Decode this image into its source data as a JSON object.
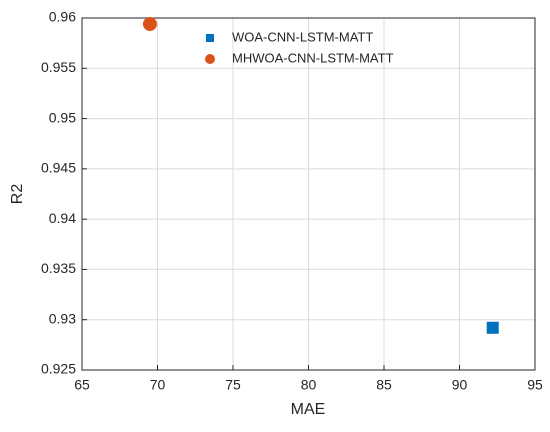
{
  "chart_data": {
    "type": "scatter",
    "xlabel": "MAE",
    "ylabel": "R2",
    "series": [
      {
        "name": "WOA-CNN-LSTM-MATT",
        "color": "#0072bd",
        "marker": "square",
        "x": [
          92.2
        ],
        "values": [
          0.9292
        ]
      },
      {
        "name": "MHWOA-CNN-LSTM-MATT",
        "color": "#d95319",
        "marker": "circle",
        "x": [
          69.5
        ],
        "values": [
          0.9594
        ]
      }
    ],
    "xlim": [
      65,
      95
    ],
    "xticks": [
      65,
      70,
      75,
      80,
      85,
      90,
      95
    ],
    "ylim": [
      0.925,
      0.96
    ],
    "yticks": [
      0.925,
      0.93,
      0.935,
      0.94,
      0.945,
      0.95,
      0.955,
      0.96
    ],
    "grid": true,
    "legend": "top"
  }
}
